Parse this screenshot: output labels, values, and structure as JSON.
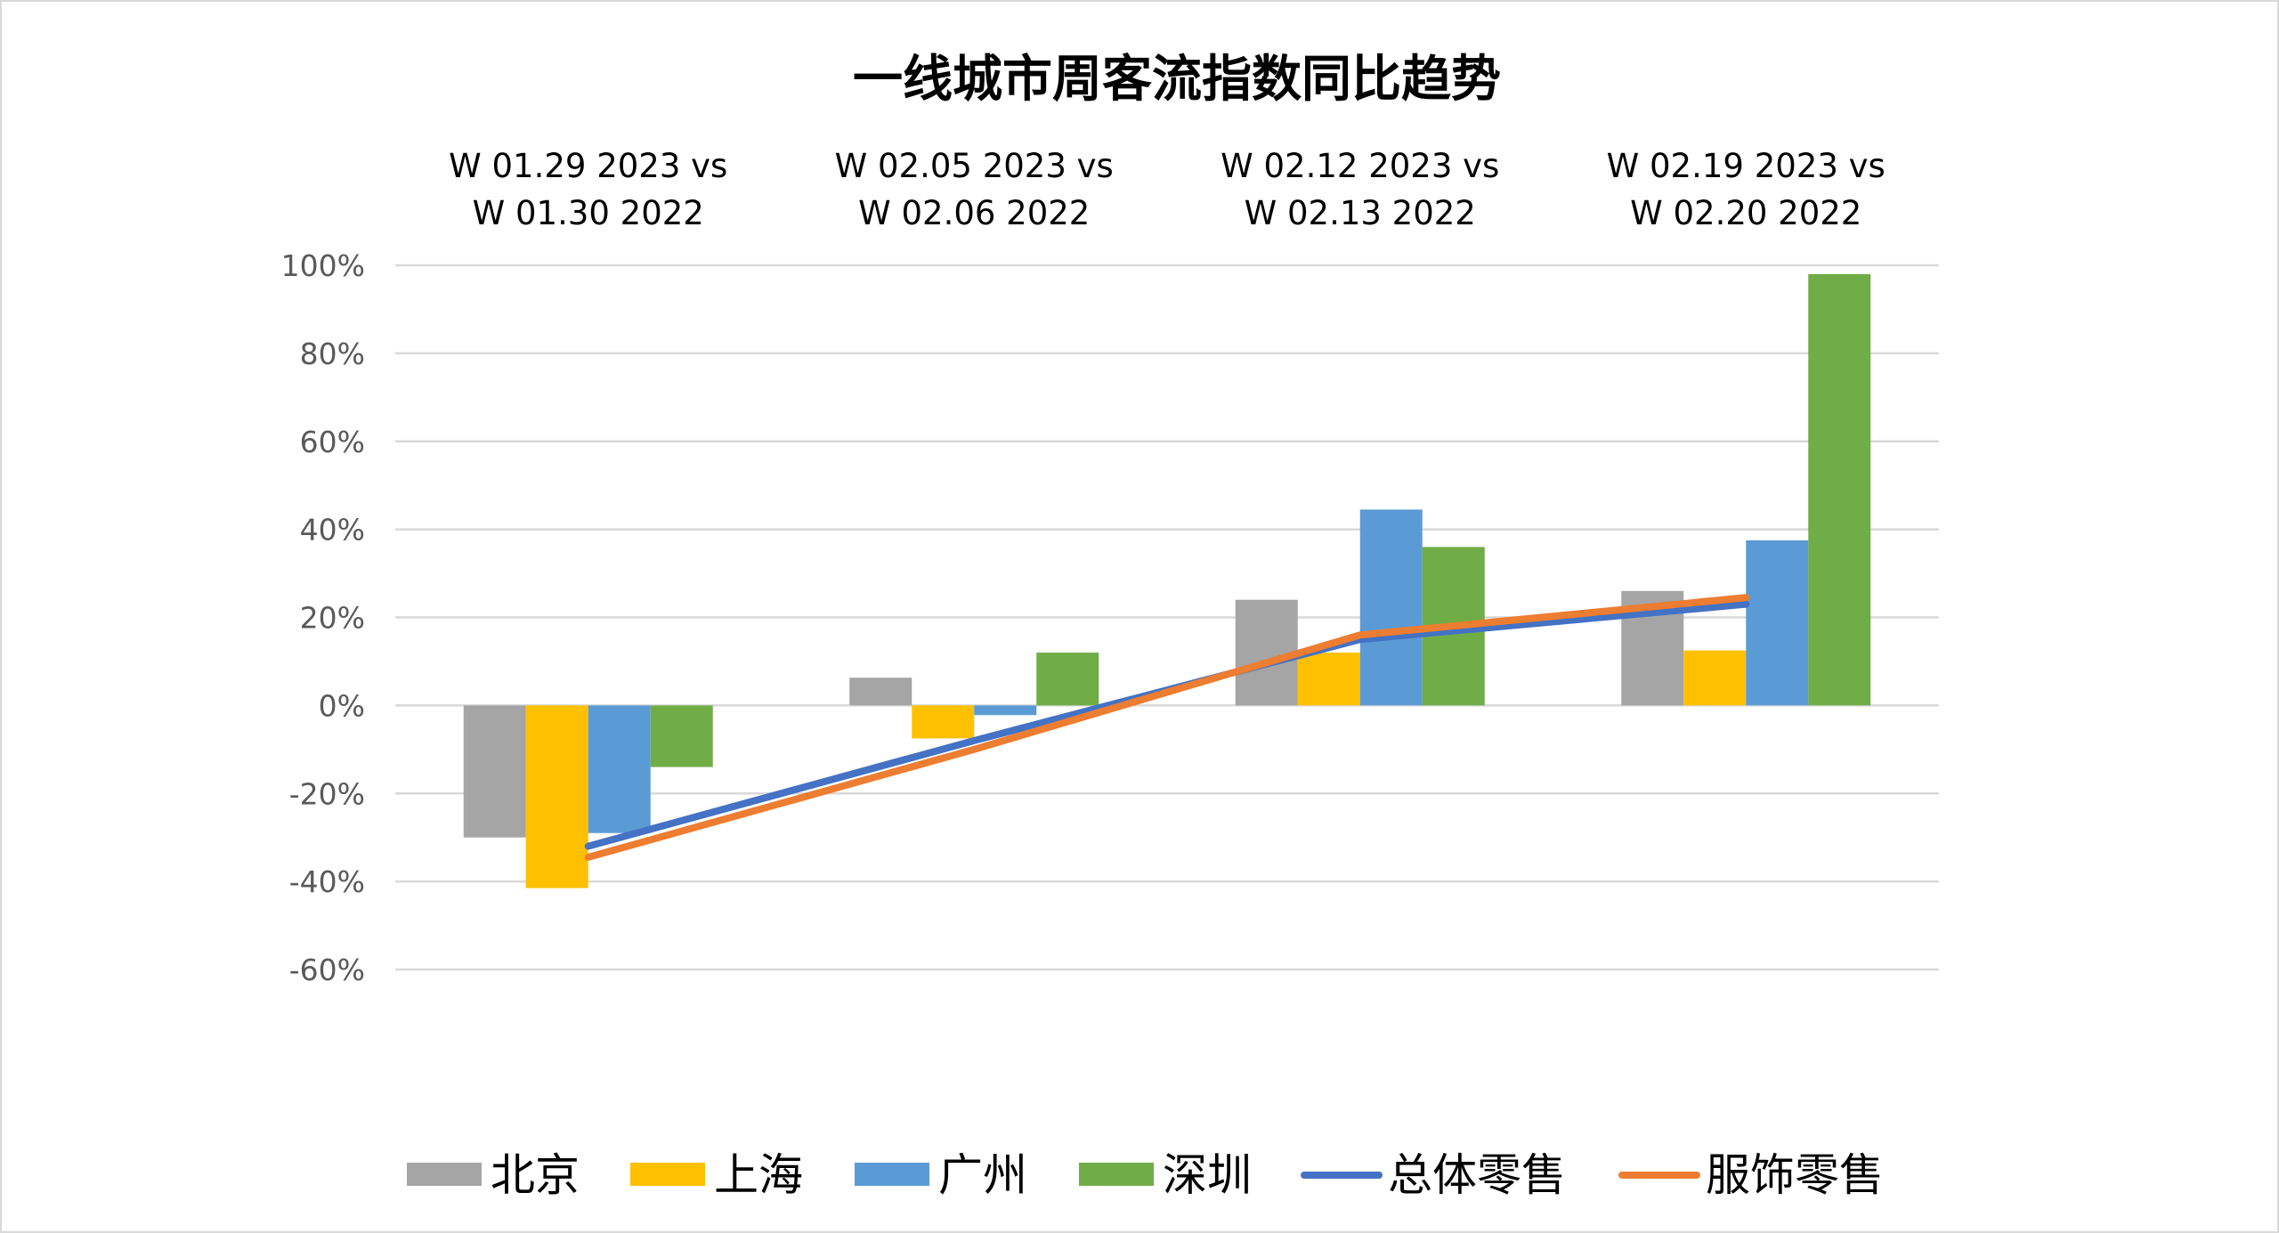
{
  "chart_data": {
    "type": "bar",
    "title": "一线城市周客流指数同比趋势",
    "xlabel": "",
    "ylabel": "",
    "categories": [
      [
        "W 01.29 2023  vs",
        "W 01.30 2022"
      ],
      [
        "W 02.05 2023  vs",
        "W 02.06 2022"
      ],
      [
        "W 02.12 2023  vs",
        "W 02.13 2022"
      ],
      [
        "W 02.19 2023  vs",
        "W 02.20 2022"
      ]
    ],
    "ylim": [
      -0.6,
      1.0
    ],
    "yticks": [
      1.0,
      0.8,
      0.6,
      0.4,
      0.2,
      0.0,
      -0.2,
      -0.4,
      -0.6
    ],
    "ytick_labels": [
      "100%",
      "80%",
      "60%",
      "40%",
      "20%",
      "0%",
      "-20%",
      "-40%",
      "-60%"
    ],
    "grid": true,
    "legend_position": "bottom",
    "bar_series": [
      {
        "name": "北京",
        "color": "#a5a5a5",
        "values": [
          -0.3,
          0.063,
          0.24,
          0.26
        ]
      },
      {
        "name": "上海",
        "color": "#ffc000",
        "values": [
          -0.415,
          -0.075,
          0.12,
          0.125
        ]
      },
      {
        "name": "广州",
        "color": "#5b9bd5",
        "values": [
          -0.29,
          -0.022,
          0.445,
          0.375
        ]
      },
      {
        "name": "深圳",
        "color": "#70ad47",
        "values": [
          -0.14,
          0.12,
          0.36,
          0.98
        ]
      }
    ],
    "line_series": [
      {
        "name": "总体零售",
        "color": "#4472c4",
        "values": [
          -0.32,
          -0.08,
          0.15,
          0.23
        ]
      },
      {
        "name": "服饰零售",
        "color": "#ed7d31",
        "values": [
          -0.345,
          -0.1,
          0.16,
          0.245
        ]
      }
    ]
  }
}
